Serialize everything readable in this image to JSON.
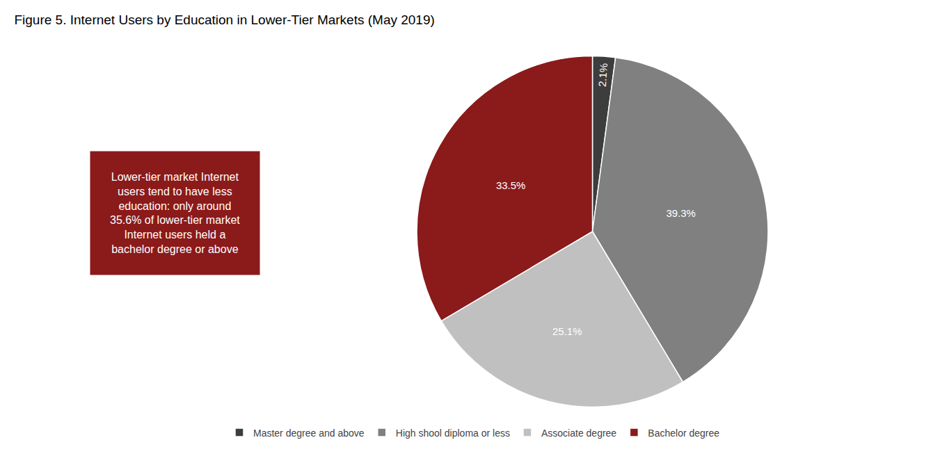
{
  "chart_data": {
    "type": "pie",
    "title": "Figure 5. Internet Users by Education in Lower-Tier Markets (May 2019)",
    "categories": [
      "Master degree and above",
      "High shool diploma or less",
      "Associate degree",
      "Bachelor degree"
    ],
    "values": [
      2.1,
      39.3,
      25.1,
      33.5
    ],
    "value_labels": [
      "2.1%",
      "39.3%",
      "25.1%",
      "33.5%"
    ],
    "colors": [
      "#3d3d3d",
      "#808080",
      "#c0c0c0",
      "#8B1A1A"
    ],
    "data_labels": true,
    "legend": "bottom",
    "annotations": [
      {
        "text": "Lower-tier market Internet\nusers tend to have less\neducation: only around\n35.6% of lower-tier market\nInternet users held a\nbachelor degree or above",
        "color": "#8B1A1A"
      }
    ]
  }
}
